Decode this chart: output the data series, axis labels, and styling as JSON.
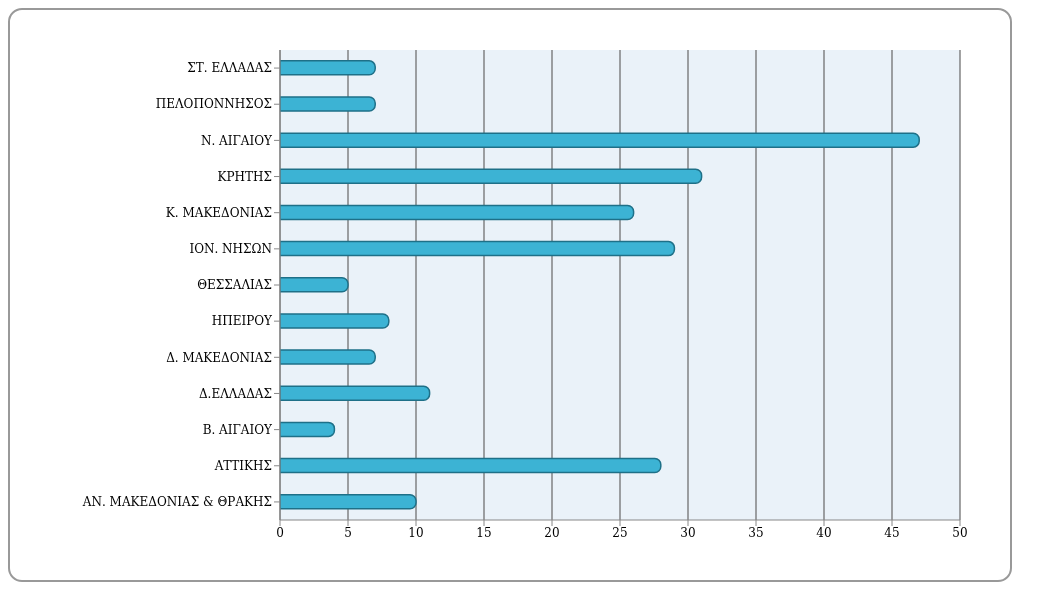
{
  "chart_data": {
    "type": "bar",
    "orientation": "horizontal",
    "categories": [
      "ΣΤ. ΕΛΛΑΔΑΣ",
      "ΠΕΛΟΠΟΝΝΗΣΟΣ",
      "Ν. ΑΙΓΑΙΟΥ",
      "ΚΡΗΤΗΣ",
      "Κ. ΜΑΚΕΔΟΝΙΑΣ",
      "ΙΟΝ. ΝΗΣΩΝ",
      "ΘΕΣΣΑΛΙΑΣ",
      "ΗΠΕΙΡΟΥ",
      "Δ. ΜΑΚΕΔΟΝΙΑΣ",
      "Δ.ΕΛΛΑΔΑΣ",
      "Β. ΑΙΓΑΙΟΥ",
      "ΑΤΤΙΚΗΣ",
      "ΑΝ. ΜΑΚΕΔΟΝΙΑΣ & ΘΡΑΚΗΣ"
    ],
    "values": [
      7,
      7,
      47,
      31,
      26,
      29,
      5,
      8,
      7,
      11,
      4,
      28,
      10
    ],
    "color": "#3cb3d4",
    "xlim": [
      0,
      50
    ],
    "xticks": [
      0,
      5,
      10,
      15,
      20,
      25,
      30,
      35,
      40,
      45,
      50
    ],
    "grid": "x"
  }
}
